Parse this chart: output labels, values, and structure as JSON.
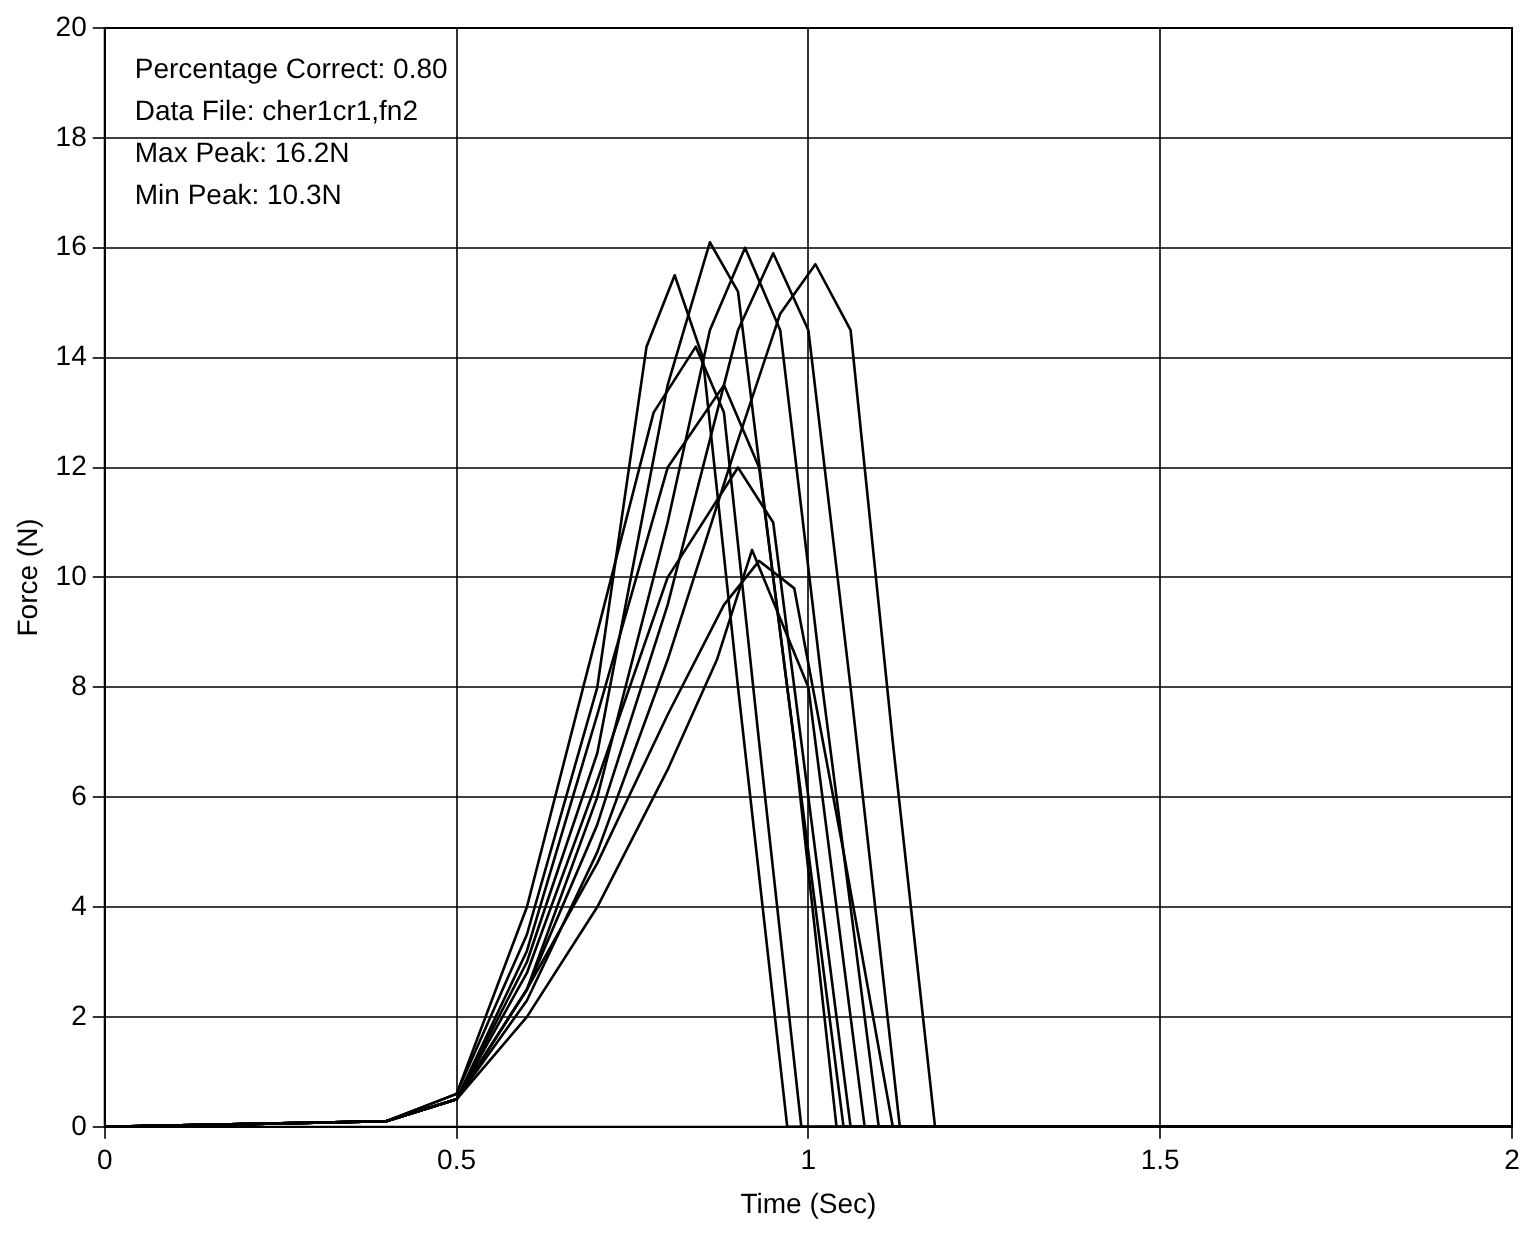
{
  "chart_data": {
    "type": "line",
    "xlabel": "Time (Sec)",
    "ylabel": "Force (N)",
    "xlim": [
      0,
      2
    ],
    "ylim": [
      0,
      20
    ],
    "xticks": [
      0,
      0.5,
      1,
      1.5,
      2
    ],
    "yticks": [
      0,
      2,
      4,
      6,
      8,
      10,
      12,
      14,
      16,
      18,
      20
    ],
    "grid": true,
    "marker": "none",
    "line_style": "solid",
    "annotations": [
      "Percentage Correct: 0.80",
      "Data File: cher1cr1,fn2",
      "Max Peak: 16.2N",
      "Min Peak: 10.3N"
    ],
    "series": [
      {
        "color": "#000000",
        "x": [
          0,
          0.4,
          0.5,
          0.6,
          0.7,
          0.77,
          0.81,
          0.85,
          0.9,
          0.97,
          2
        ],
        "values": [
          0,
          0.1,
          0.6,
          3.5,
          8,
          14.2,
          15.5,
          14,
          8,
          0,
          0
        ]
      },
      {
        "color": "#000000",
        "x": [
          0,
          0.4,
          0.5,
          0.6,
          0.7,
          0.8,
          0.86,
          0.9,
          0.95,
          1.05,
          2
        ],
        "values": [
          0,
          0.1,
          0.5,
          3,
          6.8,
          13.5,
          16.1,
          15.2,
          10,
          0,
          0
        ]
      },
      {
        "color": "#000000",
        "x": [
          0,
          0.4,
          0.5,
          0.6,
          0.7,
          0.8,
          0.86,
          0.91,
          0.96,
          1.02,
          1.1,
          2
        ],
        "values": [
          0,
          0.1,
          0.5,
          2.5,
          6,
          11,
          14.5,
          16,
          14.5,
          8,
          0,
          0
        ]
      },
      {
        "color": "#000000",
        "x": [
          0,
          0.4,
          0.5,
          0.6,
          0.7,
          0.8,
          0.9,
          0.95,
          1.0,
          1.06,
          1.13,
          2
        ],
        "values": [
          0,
          0.1,
          0.5,
          2.5,
          5.5,
          9.5,
          14.5,
          15.9,
          14.5,
          8,
          0,
          0
        ]
      },
      {
        "color": "#000000",
        "x": [
          0,
          0.4,
          0.5,
          0.6,
          0.7,
          0.8,
          0.9,
          0.96,
          1.01,
          1.06,
          1.12,
          1.18,
          2
        ],
        "values": [
          0,
          0.1,
          0.5,
          2.3,
          5,
          8.5,
          12.5,
          14.8,
          15.7,
          14.5,
          7,
          0,
          0
        ]
      },
      {
        "color": "#000000",
        "x": [
          0,
          0.4,
          0.5,
          0.6,
          0.7,
          0.8,
          0.88,
          0.93,
          0.98,
          1.05,
          1.12,
          2
        ],
        "values": [
          0,
          0.1,
          0.5,
          2.5,
          4.8,
          7.5,
          9.5,
          10.3,
          9.8,
          5,
          0,
          0
        ]
      },
      {
        "color": "#000000",
        "x": [
          0,
          0.4,
          0.5,
          0.6,
          0.7,
          0.8,
          0.87,
          0.92,
          1.0,
          1.08,
          2
        ],
        "values": [
          0,
          0.1,
          0.5,
          2,
          4,
          6.5,
          8.5,
          10.5,
          8,
          0,
          0
        ]
      },
      {
        "color": "#000000",
        "x": [
          0,
          0.4,
          0.5,
          0.6,
          0.7,
          0.8,
          0.88,
          0.93,
          0.98,
          1.04,
          2
        ],
        "values": [
          0,
          0.1,
          0.5,
          3.2,
          7.5,
          12,
          13.5,
          12,
          7,
          0,
          0
        ]
      },
      {
        "color": "#000000",
        "x": [
          0,
          0.4,
          0.5,
          0.6,
          0.7,
          0.78,
          0.84,
          0.88,
          0.93,
          0.99,
          2
        ],
        "values": [
          0,
          0.1,
          0.6,
          4,
          9,
          13,
          14.2,
          13,
          7,
          0,
          0
        ]
      },
      {
        "color": "#000000",
        "x": [
          0,
          0.4,
          0.5,
          0.6,
          0.7,
          0.8,
          0.9,
          0.95,
          1.0,
          1.06,
          2
        ],
        "values": [
          0,
          0.1,
          0.5,
          2.8,
          6.3,
          10,
          12,
          11,
          6,
          0,
          0
        ]
      }
    ]
  }
}
